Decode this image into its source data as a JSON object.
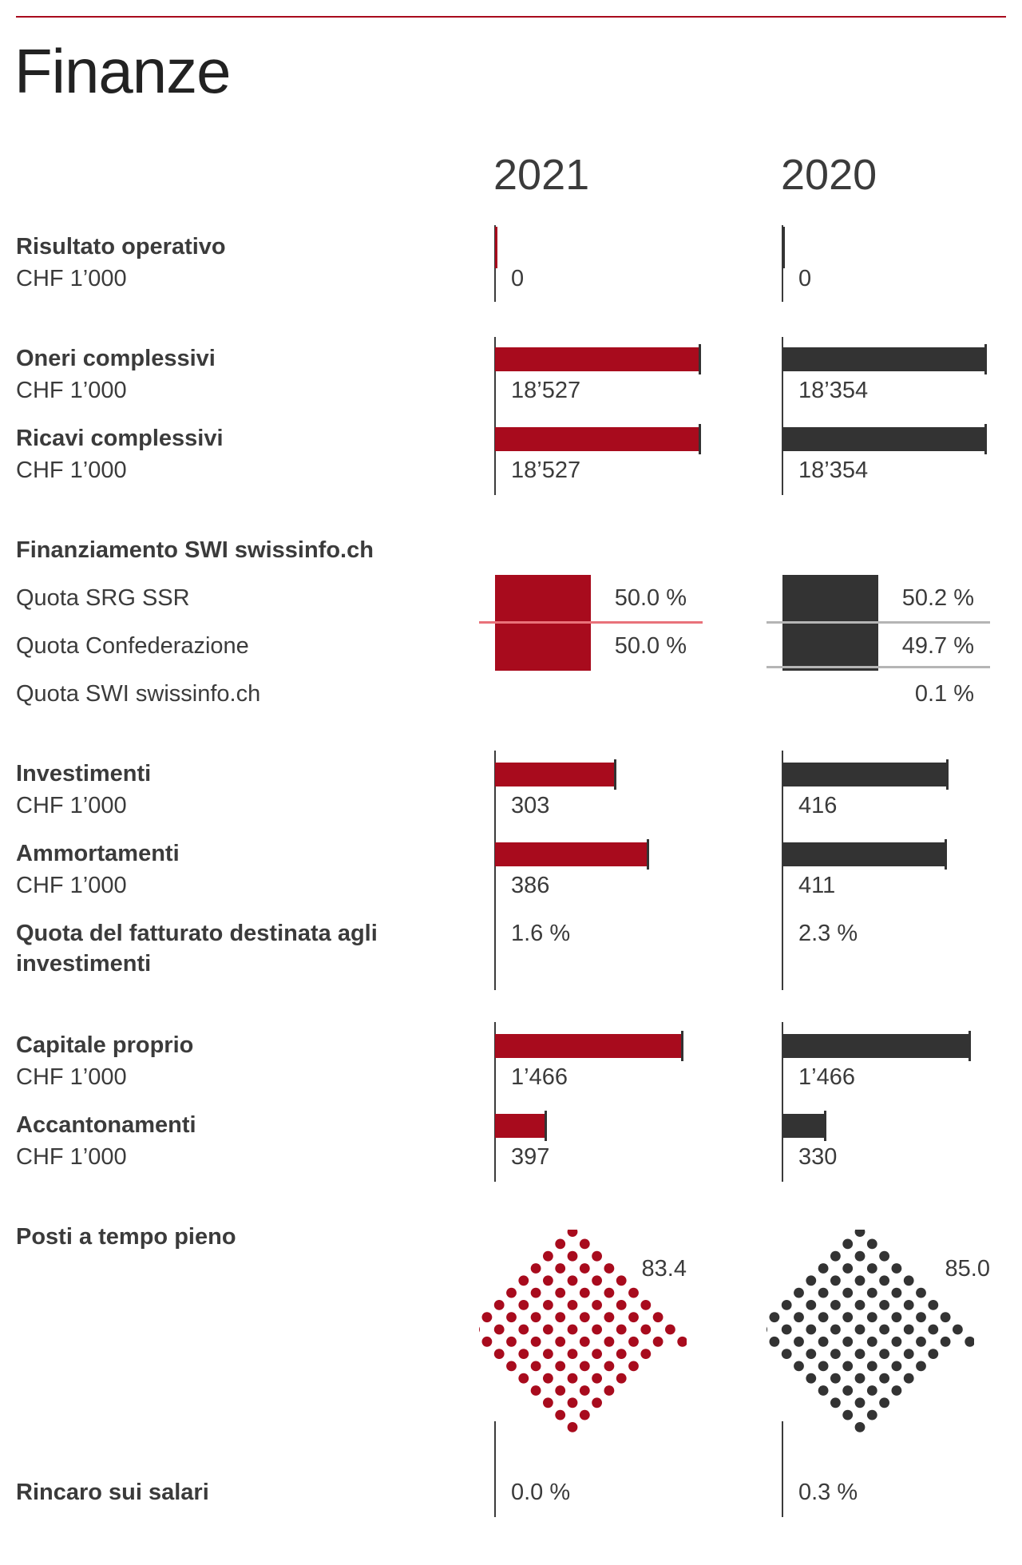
{
  "page": {
    "title": "Finanze"
  },
  "years": {
    "current": "2021",
    "previous": "2020"
  },
  "colors": {
    "current": "#a80b1d",
    "previous": "#333333",
    "rule": "#a80b1d"
  },
  "labels": {
    "risultato": "Risultato operativo",
    "oneri": "Oneri complessivi",
    "ricavi": "Ricavi complessivi",
    "finanziamento": "Finanziamento SWI swissinfo.ch",
    "quota_srg": "Quota SRG SSR",
    "quota_conf": "Quota Confederazione",
    "quota_swi": "Quota SWI swissinfo.ch",
    "investimenti": "Investimenti",
    "ammortamenti": "Ammortamenti",
    "quota_fatturato": "Quota del fatturato destinata agli investimenti",
    "capitale": "Capitale proprio",
    "accantonamenti": "Accantonamenti",
    "posti": "Posti a tempo pieno",
    "rincaro": "Rincaro sui salari",
    "unit": "CHF 1’000"
  },
  "values": {
    "risultato": {
      "y2021": "0",
      "y2020": "0"
    },
    "oneri": {
      "y2021": "18’527",
      "y2020": "18’354"
    },
    "ricavi": {
      "y2021": "18’527",
      "y2020": "18’354"
    },
    "quota_srg": {
      "y2021": "50.0 %",
      "y2020": "50.2 %"
    },
    "quota_conf": {
      "y2021": "50.0 %",
      "y2020": "49.7 %"
    },
    "quota_swi": {
      "y2020": "0.1 %"
    },
    "investimenti": {
      "y2021": "303",
      "y2020": "416"
    },
    "ammortamenti": {
      "y2021": "386",
      "y2020": "411"
    },
    "quota_fatturato": {
      "y2021": "1.6 %",
      "y2020": "2.3 %"
    },
    "capitale": {
      "y2021": "1’466",
      "y2020": "1’466"
    },
    "accantonamenti": {
      "y2021": "397",
      "y2020": "330"
    },
    "posti": {
      "y2021": "83.4",
      "y2020": "85.0"
    },
    "rincaro": {
      "y2021": "0.0 %",
      "y2020": "0.3 %"
    }
  },
  "chart_data": [
    {
      "type": "bar",
      "title": "Risultato operativo",
      "ylabel": "CHF 1’000",
      "categories": [
        "2021",
        "2020"
      ],
      "values": [
        0,
        0
      ]
    },
    {
      "type": "bar",
      "title": "Oneri complessivi",
      "ylabel": "CHF 1’000",
      "categories": [
        "2021",
        "2020"
      ],
      "values": [
        18527,
        18354
      ]
    },
    {
      "type": "bar",
      "title": "Ricavi complessivi",
      "ylabel": "CHF 1’000",
      "categories": [
        "2021",
        "2020"
      ],
      "values": [
        18527,
        18354
      ]
    },
    {
      "type": "bar",
      "title": "Finanziamento SWI swissinfo.ch",
      "categories": [
        "Quota SRG SSR",
        "Quota Confederazione",
        "Quota SWI swissinfo.ch"
      ],
      "series": [
        {
          "name": "2021",
          "values": [
            50.0,
            50.0,
            0.0
          ]
        },
        {
          "name": "2020",
          "values": [
            50.2,
            49.7,
            0.1
          ]
        }
      ]
    },
    {
      "type": "bar",
      "title": "Investimenti",
      "ylabel": "CHF 1’000",
      "categories": [
        "2021",
        "2020"
      ],
      "values": [
        303,
        416
      ]
    },
    {
      "type": "bar",
      "title": "Ammortamenti",
      "ylabel": "CHF 1’000",
      "categories": [
        "2021",
        "2020"
      ],
      "values": [
        386,
        411
      ]
    },
    {
      "type": "table",
      "title": "Quota del fatturato destinata agli investimenti",
      "categories": [
        "2021",
        "2020"
      ],
      "values": [
        1.6,
        2.3
      ]
    },
    {
      "type": "bar",
      "title": "Capitale proprio",
      "ylabel": "CHF 1’000",
      "categories": [
        "2021",
        "2020"
      ],
      "values": [
        1466,
        1466
      ]
    },
    {
      "type": "bar",
      "title": "Accantonamenti",
      "ylabel": "CHF 1’000",
      "categories": [
        "2021",
        "2020"
      ],
      "values": [
        397,
        330
      ]
    },
    {
      "type": "scatter",
      "title": "Posti a tempo pieno",
      "categories": [
        "2021",
        "2020"
      ],
      "values": [
        83.4,
        85.0
      ]
    },
    {
      "type": "table",
      "title": "Rincaro sui salari",
      "categories": [
        "2021",
        "2020"
      ],
      "values": [
        0.0,
        0.3
      ]
    }
  ]
}
